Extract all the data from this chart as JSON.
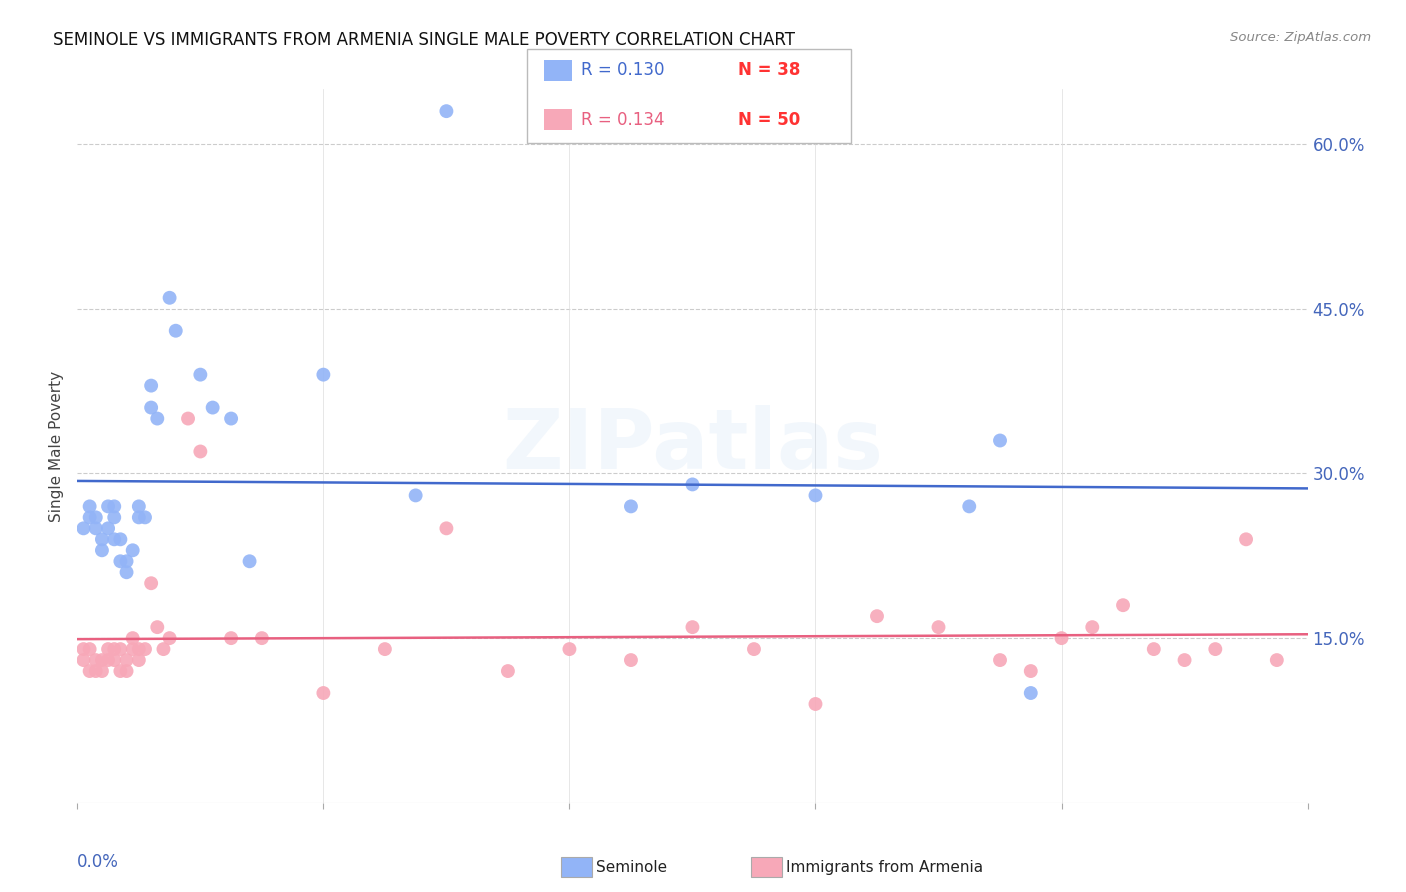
{
  "title": "SEMINOLE VS IMMIGRANTS FROM ARMENIA SINGLE MALE POVERTY CORRELATION CHART",
  "source": "Source: ZipAtlas.com",
  "ylabel": "Single Male Poverty",
  "ytick_labels": [
    "60.0%",
    "45.0%",
    "30.0%",
    "15.0%"
  ],
  "ytick_values": [
    0.6,
    0.45,
    0.3,
    0.15
  ],
  "xmin": 0.0,
  "xmax": 0.2,
  "ymin": 0.0,
  "ymax": 0.65,
  "legend_r1": "R = 0.130",
  "legend_n1": "N = 38",
  "legend_r2": "R = 0.134",
  "legend_n2": "N = 50",
  "color_blue": "#92B4F7",
  "color_pink": "#F7A8B8",
  "color_blue_line": "#4169CC",
  "color_pink_line": "#E86080",
  "color_blue_text": "#4169CC",
  "color_pink_text": "#E86080",
  "color_n_text": "#FF3333",
  "color_axis": "#4466BB",
  "watermark": "ZIPatlas",
  "seminole_x": [
    0.001,
    0.002,
    0.002,
    0.003,
    0.003,
    0.004,
    0.004,
    0.005,
    0.005,
    0.006,
    0.006,
    0.006,
    0.007,
    0.007,
    0.008,
    0.008,
    0.009,
    0.01,
    0.01,
    0.011,
    0.012,
    0.012,
    0.013,
    0.015,
    0.016,
    0.02,
    0.022,
    0.025,
    0.028,
    0.04,
    0.055,
    0.06,
    0.09,
    0.1,
    0.12,
    0.145,
    0.15,
    0.155
  ],
  "seminole_y": [
    0.25,
    0.27,
    0.26,
    0.25,
    0.26,
    0.24,
    0.23,
    0.25,
    0.27,
    0.24,
    0.27,
    0.26,
    0.22,
    0.24,
    0.22,
    0.21,
    0.23,
    0.27,
    0.26,
    0.26,
    0.36,
    0.38,
    0.35,
    0.46,
    0.43,
    0.39,
    0.36,
    0.35,
    0.22,
    0.39,
    0.28,
    0.63,
    0.27,
    0.29,
    0.28,
    0.27,
    0.33,
    0.1
  ],
  "armenia_x": [
    0.001,
    0.001,
    0.002,
    0.002,
    0.003,
    0.003,
    0.004,
    0.004,
    0.005,
    0.005,
    0.006,
    0.006,
    0.007,
    0.007,
    0.008,
    0.008,
    0.009,
    0.009,
    0.01,
    0.01,
    0.011,
    0.012,
    0.013,
    0.014,
    0.015,
    0.018,
    0.02,
    0.025,
    0.03,
    0.04,
    0.05,
    0.06,
    0.07,
    0.08,
    0.09,
    0.1,
    0.11,
    0.12,
    0.13,
    0.14,
    0.15,
    0.155,
    0.16,
    0.165,
    0.17,
    0.175,
    0.18,
    0.185,
    0.19,
    0.195
  ],
  "armenia_y": [
    0.14,
    0.13,
    0.14,
    0.12,
    0.13,
    0.12,
    0.13,
    0.12,
    0.14,
    0.13,
    0.14,
    0.13,
    0.14,
    0.12,
    0.13,
    0.12,
    0.14,
    0.15,
    0.13,
    0.14,
    0.14,
    0.2,
    0.16,
    0.14,
    0.15,
    0.35,
    0.32,
    0.15,
    0.15,
    0.1,
    0.14,
    0.25,
    0.12,
    0.14,
    0.13,
    0.16,
    0.14,
    0.09,
    0.17,
    0.16,
    0.13,
    0.12,
    0.15,
    0.16,
    0.18,
    0.14,
    0.13,
    0.14,
    0.24,
    0.13
  ]
}
